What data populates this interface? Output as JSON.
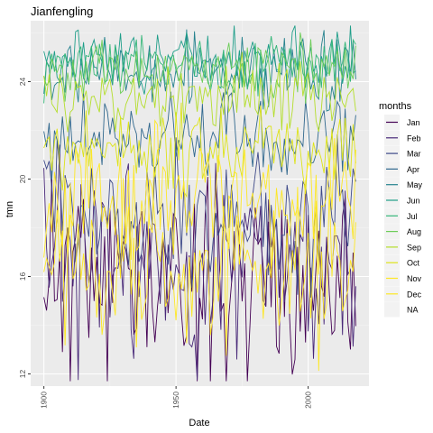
{
  "chart_data": {
    "type": "line",
    "title": "Jianfengling",
    "xlabel": "Date",
    "ylabel": "tmn",
    "xlim": [
      1895,
      2023
    ],
    "ylim": [
      11.5,
      26.5
    ],
    "x_ticks": [
      1900,
      1950,
      2000
    ],
    "y_ticks": [
      12,
      16,
      20,
      24
    ],
    "x_tick_labels": [
      "1900",
      "1950",
      "2000"
    ],
    "y_tick_labels": [
      "12",
      "16",
      "20",
      "24"
    ],
    "grid": true,
    "legend_position": "right",
    "legend_title": "months",
    "x_start": 1900,
    "x_end": 2018,
    "series": [
      {
        "name": "Jan",
        "color": "#440154",
        "mean": 16.0,
        "amp": 2.2,
        "seed": 11
      },
      {
        "name": "Feb",
        "color": "#482878",
        "mean": 16.6,
        "amp": 2.0,
        "seed": 23
      },
      {
        "name": "Mar",
        "color": "#3E4A89",
        "mean": 18.5,
        "amp": 1.4,
        "seed": 37
      },
      {
        "name": "Apr",
        "color": "#31688E",
        "mean": 21.6,
        "amp": 0.9,
        "seed": 41
      },
      {
        "name": "May",
        "color": "#26828E",
        "mean": 24.4,
        "amp": 0.7,
        "seed": 53
      },
      {
        "name": "Jun",
        "color": "#1F9E89",
        "mean": 25.0,
        "amp": 0.6,
        "seed": 67
      },
      {
        "name": "Jul",
        "color": "#35B779",
        "mean": 24.8,
        "amp": 0.6,
        "seed": 71
      },
      {
        "name": "Aug",
        "color": "#6DCD59",
        "mean": 24.5,
        "amp": 0.6,
        "seed": 83
      },
      {
        "name": "Sep",
        "color": "#B4DE2C",
        "mean": 23.4,
        "amp": 0.7,
        "seed": 97
      },
      {
        "name": "Oct",
        "color": "#DDE318",
        "mean": 21.3,
        "amp": 0.9,
        "seed": 101
      },
      {
        "name": "Nov",
        "color": "#FDE725",
        "mean": 19.0,
        "amp": 1.3,
        "seed": 113
      },
      {
        "name": "Dec",
        "color": "#FDE725",
        "mean": 16.2,
        "amp": 1.7,
        "seed": 127
      }
    ],
    "legend_na": {
      "name": "NA",
      "color": "#d9d9d9"
    }
  }
}
